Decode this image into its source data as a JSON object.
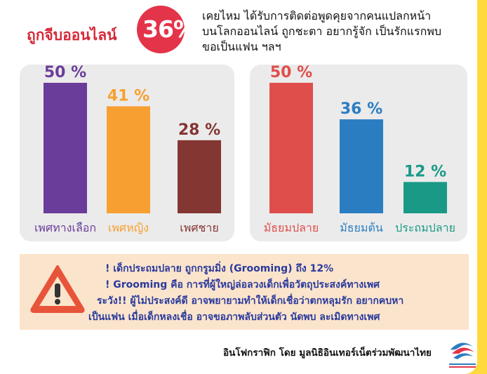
{
  "header": {
    "title": "ถูกจีบออนไลน์",
    "percent": "36%",
    "desc_lines": [
      "เคยไหม ได้รับการติดต่อพูดคุยจากคนแปลกหน้า",
      "บนโลกออนไลน์ ถูกชะตา อยากรู้จัก เป็นรักแรกพบ",
      "ขอเป็นแฟน ฯลฯ"
    ]
  },
  "chart_data": [
    {
      "type": "bar",
      "categories": [
        "เพศทางเลือก",
        "เพศหญิง",
        "เพศชาย"
      ],
      "values": [
        50,
        41,
        28
      ],
      "value_labels": [
        "50 %",
        "41 %",
        "28 %"
      ],
      "colors": [
        "#6a3d9a",
        "#f7a031",
        "#843632"
      ],
      "ylim": [
        0,
        50
      ]
    },
    {
      "type": "bar",
      "categories": [
        "มัธยมปลาย",
        "มัธยมต้น",
        "ประถมปลาย"
      ],
      "values": [
        50,
        36,
        12
      ],
      "value_labels": [
        "50 %",
        "36 %",
        "12 %"
      ],
      "colors": [
        "#df4e4b",
        "#2b7dc1",
        "#1a9a86"
      ],
      "ylim": [
        0,
        50
      ]
    }
  ],
  "warning": {
    "icon": "warning-triangle-icon",
    "lines": [
      "! เด็กประถมปลาย ถูกกรูมมิ่ง (Grooming) ถึง 12%",
      "! Grooming คือ การที่ผู้ใหญ่ล่อลวงเด็กเพื่อวัตถุประสงค์ทางเพศ",
      "ระวัง!! ผู้ไม่ประสงค์ดี อาจพยายามทำให้เด็กเชื่อว่าตกหลุมรัก อยากคบหา",
      "เป็นแฟน เมื่อเด็กหลงเชื่อ อาจขอภาพลับส่วนตัว นัดพบ ละเมิดทางเพศ"
    ]
  },
  "credit": "อินโฟกราฟิก โดย มูลนิธิอินเทอร์เน็ตร่วมพัฒนาไทย",
  "colors": {
    "accent": "#e4344a",
    "background": "#ffd93d",
    "warning_text": "#2a3a9c"
  }
}
